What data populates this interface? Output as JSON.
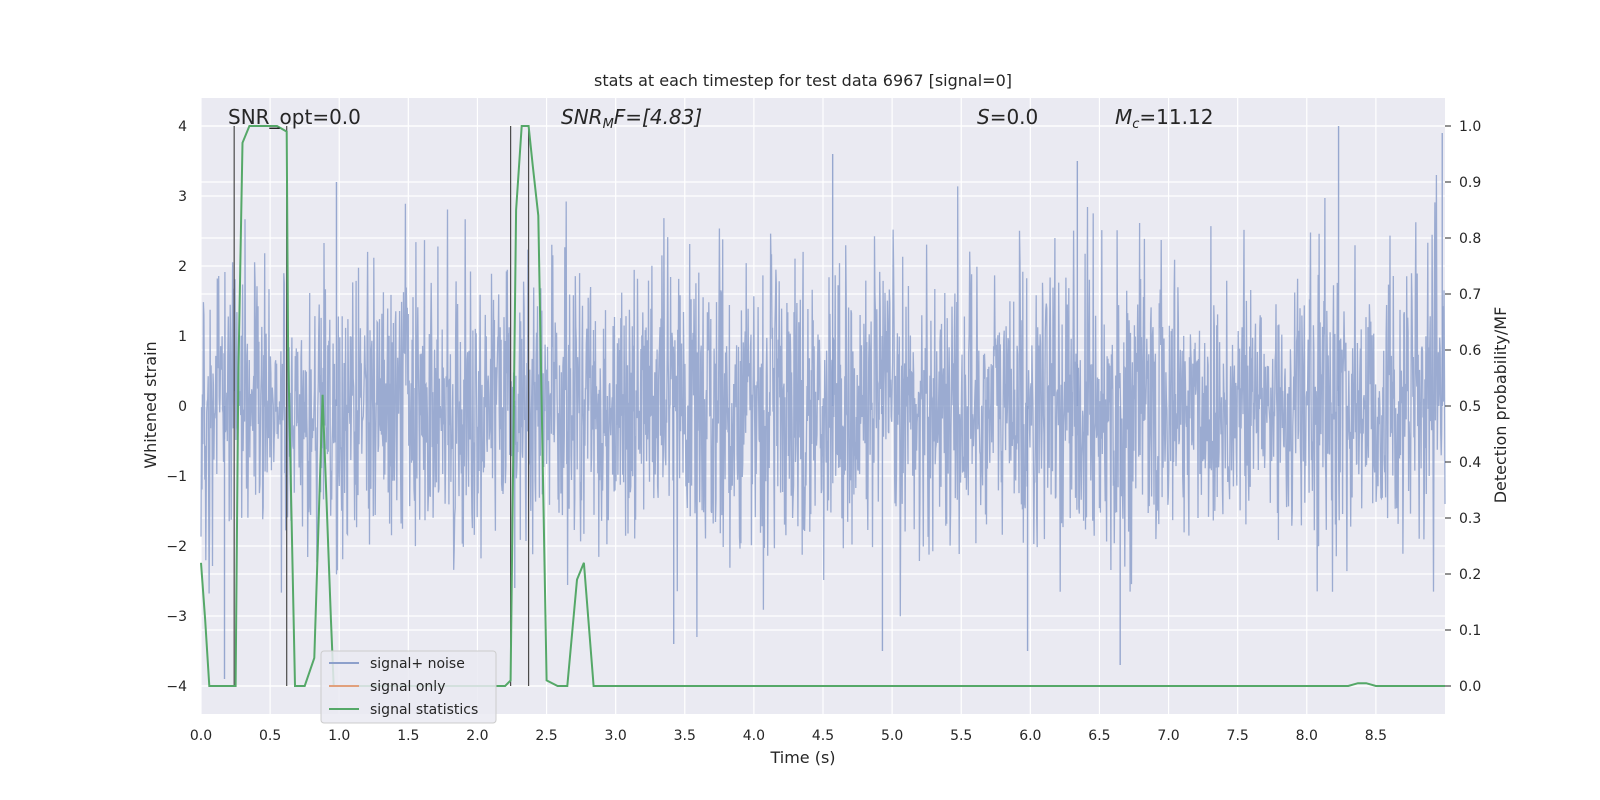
{
  "chart_data": {
    "type": "line",
    "title": "stats at each timestep for test data 6967 [signal=0]",
    "xlabel": "Time (s)",
    "ylabel": "Whitened strain",
    "ylabel_right": "Detection probability/MF",
    "xlim": [
      0.0,
      9.0
    ],
    "ylim": [
      -4.4,
      4.4
    ],
    "ylim_right": [
      -0.05,
      1.05
    ],
    "x_ticks": [
      0.0,
      0.5,
      1.0,
      1.5,
      2.0,
      2.5,
      3.0,
      3.5,
      4.0,
      4.5,
      5.0,
      5.5,
      6.0,
      6.5,
      7.0,
      7.5,
      8.0,
      8.5
    ],
    "y_ticks": [
      -4,
      -3,
      -2,
      -1,
      0,
      1,
      2,
      3,
      4
    ],
    "y_ticks_right": [
      0.0,
      0.1,
      0.2,
      0.3,
      0.4,
      0.5,
      0.6,
      0.7,
      0.8,
      0.9,
      1.0
    ],
    "grid": true,
    "legend_position": "lower-left",
    "annotations": {
      "snr_opt": "SNR_opt=0.0",
      "snr_mf_main": "SNR",
      "snr_mf_sub": "M",
      "snr_mf_tail": "F=[4.83]",
      "s_var": "S",
      "s_val": "=0.0",
      "mc_var": "M",
      "mc_sub": "c",
      "mc_val": "=11.12"
    },
    "series": [
      {
        "name": "signal+ noise",
        "color": "#8da0cb",
        "style": "dense noise, amplitude mostly within ±1.6, spikes up to about ±3.6",
        "peaks": [
          {
            "x": 0.17,
            "y": -3.9
          },
          {
            "x": 0.62,
            "y": 2.8
          },
          {
            "x": 0.98,
            "y": 3.2
          },
          {
            "x": 2.27,
            "y": -2.6
          },
          {
            "x": 3.42,
            "y": -3.4
          },
          {
            "x": 4.57,
            "y": 3.6
          },
          {
            "x": 4.93,
            "y": -3.5
          },
          {
            "x": 5.98,
            "y": -3.5
          },
          {
            "x": 6.34,
            "y": 3.5
          },
          {
            "x": 6.65,
            "y": -3.7
          },
          {
            "x": 8.23,
            "y": 4.0
          },
          {
            "x": 8.98,
            "y": 3.9
          }
        ]
      },
      {
        "name": "signal only",
        "color": "#e1a07c",
        "x": [],
        "y": []
      },
      {
        "name": "signal statistics",
        "color": "#55a868",
        "axis": "right",
        "x": [
          0.0,
          0.03,
          0.06,
          0.25,
          0.27,
          0.3,
          0.35,
          0.45,
          0.55,
          0.62,
          0.63,
          0.68,
          0.75,
          0.82,
          0.88,
          0.94,
          0.96,
          1.0,
          2.0,
          2.1,
          2.2,
          2.24,
          2.28,
          2.32,
          2.37,
          2.4,
          2.44,
          2.5,
          2.58,
          2.65,
          2.72,
          2.77,
          2.84,
          2.9,
          3.0,
          5.0,
          8.3,
          8.37,
          8.43,
          8.5,
          9.0
        ],
        "y": [
          0.22,
          0.12,
          0.0,
          0.0,
          0.55,
          0.97,
          1.0,
          1.0,
          1.0,
          0.99,
          0.6,
          0.0,
          0.0,
          0.05,
          0.52,
          0.12,
          0.0,
          0.0,
          0.0,
          0.0,
          0.0,
          0.01,
          0.85,
          1.0,
          1.0,
          0.93,
          0.84,
          0.01,
          0.0,
          0.0,
          0.19,
          0.22,
          0.0,
          0.0,
          0.0,
          0.0,
          0.0,
          0.005,
          0.005,
          0.0,
          0.0
        ]
      }
    ],
    "vertical_lines": [
      0.24,
      0.62,
      2.24,
      2.37
    ]
  }
}
